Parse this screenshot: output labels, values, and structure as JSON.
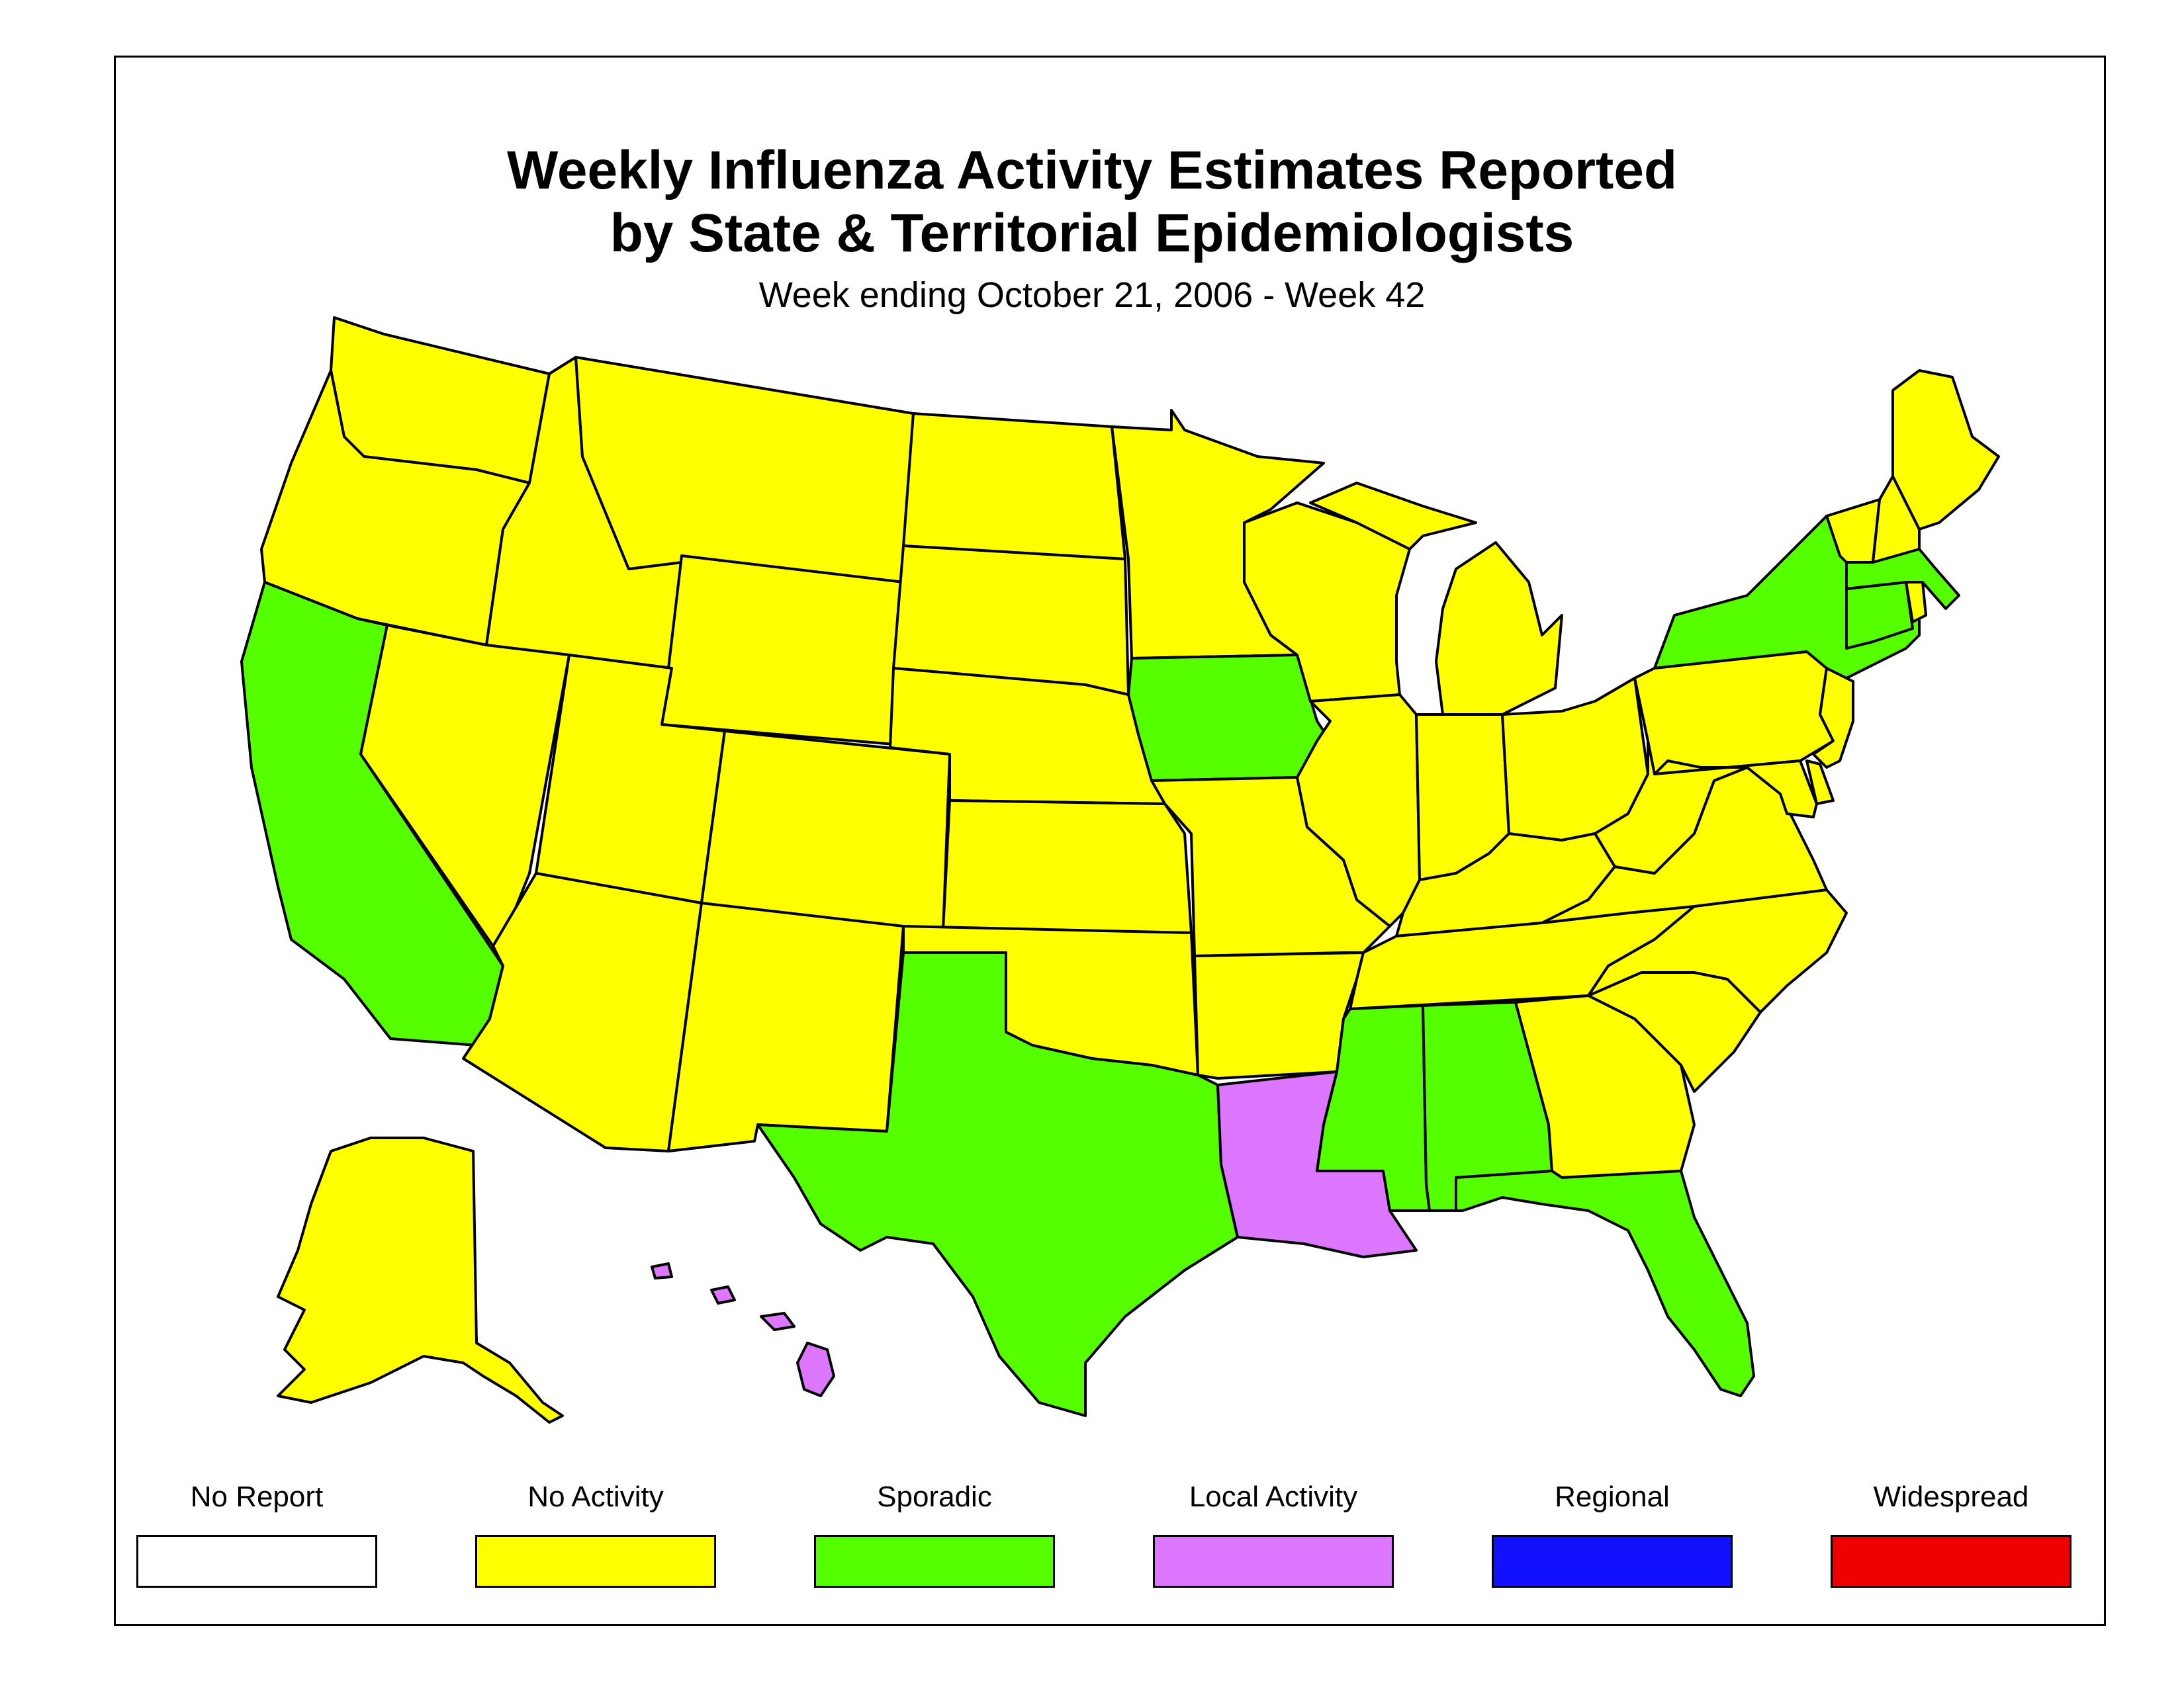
{
  "title_line1": "Weekly Influenza Activity Estimates Reported",
  "title_line2": "by State & Territorial Epidemiologists",
  "subtitle": "Week ending October 21, 2006 - Week 42",
  "colors": {
    "no_report": "#ffffff",
    "no_activity": "#ffff00",
    "sporadic": "#55ff00",
    "local": "#dd77ff",
    "regional": "#1111ff",
    "widespread": "#ee0000"
  },
  "legend": [
    {
      "label": "No Report",
      "color": "#ffffff"
    },
    {
      "label": "No Activity",
      "color": "#ffff00"
    },
    {
      "label": "Sporadic",
      "color": "#55ff00"
    },
    {
      "label": "Local Activity",
      "color": "#dd77ff"
    },
    {
      "label": "Regional",
      "color": "#1111ff"
    },
    {
      "label": "Widespread",
      "color": "#ee0000"
    }
  ],
  "state_levels": {
    "WA": "No Activity",
    "OR": "No Activity",
    "CA": "Sporadic",
    "ID": "No Activity",
    "NV": "No Activity",
    "MT": "No Activity",
    "WY": "No Activity",
    "UT": "No Activity",
    "AZ": "No Activity",
    "CO": "No Activity",
    "NM": "No Activity",
    "ND": "No Activity",
    "SD": "No Activity",
    "NE": "No Activity",
    "KS": "No Activity",
    "OK": "No Activity",
    "TX": "Sporadic",
    "MN": "No Activity",
    "IA": "Sporadic",
    "MO": "No Activity",
    "AR": "No Activity",
    "LA": "Local Activity",
    "WI": "No Activity",
    "IL": "No Activity",
    "MI": "No Activity",
    "IN": "No Activity",
    "OH": "No Activity",
    "KY": "No Activity",
    "TN": "No Activity",
    "MS": "Sporadic",
    "AL": "Sporadic",
    "GA": "No Activity",
    "FL": "Sporadic",
    "SC": "No Activity",
    "NC": "No Activity",
    "VA": "No Activity",
    "WV": "No Activity",
    "PA": "No Activity",
    "NY": "Sporadic",
    "VT": "No Activity",
    "NH": "No Activity",
    "ME": "No Activity",
    "MA": "Sporadic",
    "CT": "Sporadic",
    "RI": "No Activity",
    "NJ": "No Activity",
    "DE": "No Activity",
    "MD": "No Activity",
    "AK": "No Activity",
    "HI": "Local Activity"
  }
}
